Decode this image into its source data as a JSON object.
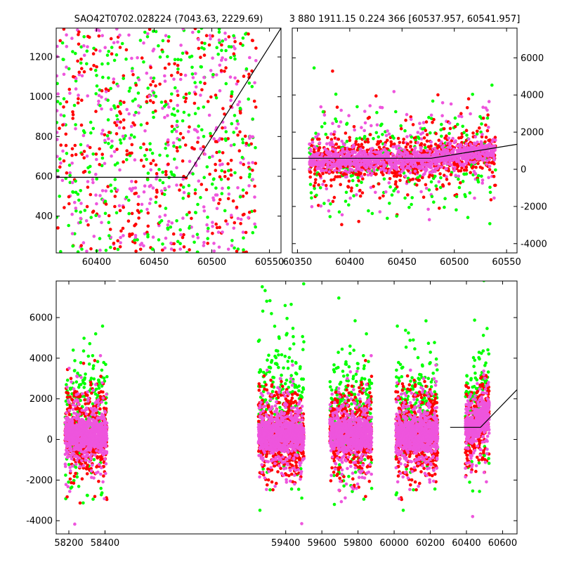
{
  "chart_data": [
    {
      "type": "scatter",
      "panel": "top-left",
      "title": "SAO42T0702.028224 (7043.63, 2229.69)",
      "xlim": [
        60365,
        60560
      ],
      "ylim": [
        215,
        1345
      ],
      "xticks": [
        60400,
        60450,
        60500,
        60550
      ],
      "yticks": [
        400,
        600,
        800,
        1000,
        1200
      ],
      "ytick_side": "left",
      "series_colors": [
        "#00ff00",
        "#ff0000",
        "#ee55dd"
      ],
      "model_line": {
        "x": [
          60365,
          60478,
          60560
        ],
        "y": [
          595,
          595,
          1345
        ]
      }
    },
    {
      "type": "scatter",
      "panel": "top-right",
      "title": "3 880 1911.15 0.224 366 [60537.957, 60541.957]",
      "xlim": [
        60345,
        60560
      ],
      "ylim": [
        -4500,
        7600
      ],
      "xticks": [
        60350,
        60400,
        60450,
        60500,
        60550
      ],
      "yticks": [
        -4000,
        -2000,
        0,
        2000,
        4000,
        6000
      ],
      "ytick_side": "right",
      "series_colors": [
        "#00ff00",
        "#ff0000",
        "#ee55dd"
      ],
      "model_line": {
        "x": [
          60345,
          60478,
          60560
        ],
        "y": [
          595,
          595,
          1345
        ]
      }
    },
    {
      "type": "scatter",
      "panel": "bottom",
      "title": "",
      "xlim": [
        58130,
        60680
      ],
      "ylim": [
        -4650,
        7800
      ],
      "xticks": [
        58200,
        58400,
        59400,
        59600,
        59800,
        60000,
        60200,
        60400,
        60600
      ],
      "yticks": [
        -4000,
        -2000,
        0,
        2000,
        4000,
        6000
      ],
      "ytick_side": "left",
      "series_colors": [
        "#00ff00",
        "#ff0000",
        "#ee55dd"
      ],
      "axis_break": {
        "from": 58440,
        "to": 59250
      },
      "seasons": [
        [
          58180,
          58410
        ],
        [
          59250,
          59500
        ],
        [
          59645,
          59875
        ],
        [
          60010,
          60240
        ],
        [
          60395,
          60525
        ]
      ],
      "model_line": {
        "x": [
          60310,
          60478,
          60680
        ],
        "y": [
          595,
          595,
          2450
        ]
      }
    }
  ]
}
